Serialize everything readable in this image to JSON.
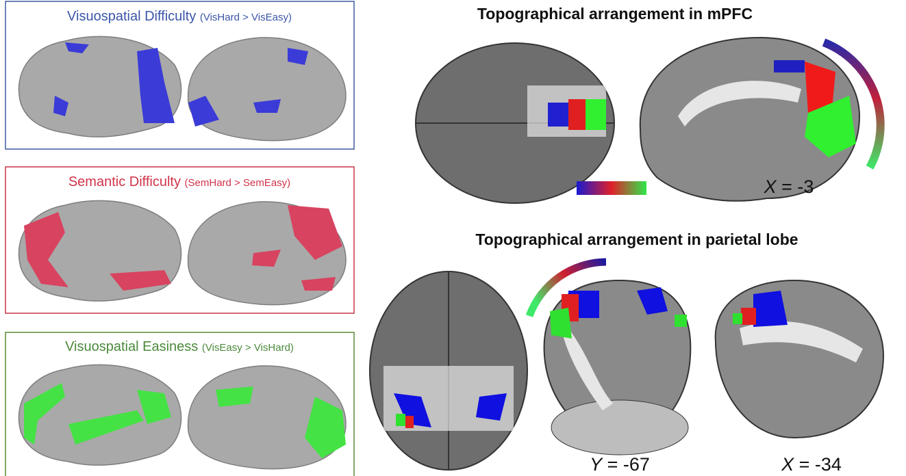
{
  "panels": [
    {
      "title": "Visuospatial Difficulty",
      "contrast": "(VisHard > VisEasy)"
    },
    {
      "title": "Semantic Difficulty",
      "contrast": "(SemHard > SemEasy)"
    },
    {
      "title": "Visuospatial Easiness",
      "contrast": "(VisEasy > VisHard)"
    }
  ],
  "mpfc": {
    "title": "Topographical arrangement in mPFC",
    "slice_label": {
      "axis": "X",
      "value": "= -3"
    }
  },
  "parietal": {
    "title": "Topographical arrangement in parietal lobe",
    "slice_labels": [
      {
        "axis": "Y",
        "value": "= -67"
      },
      {
        "axis": "X",
        "value": "= -34"
      }
    ]
  }
}
